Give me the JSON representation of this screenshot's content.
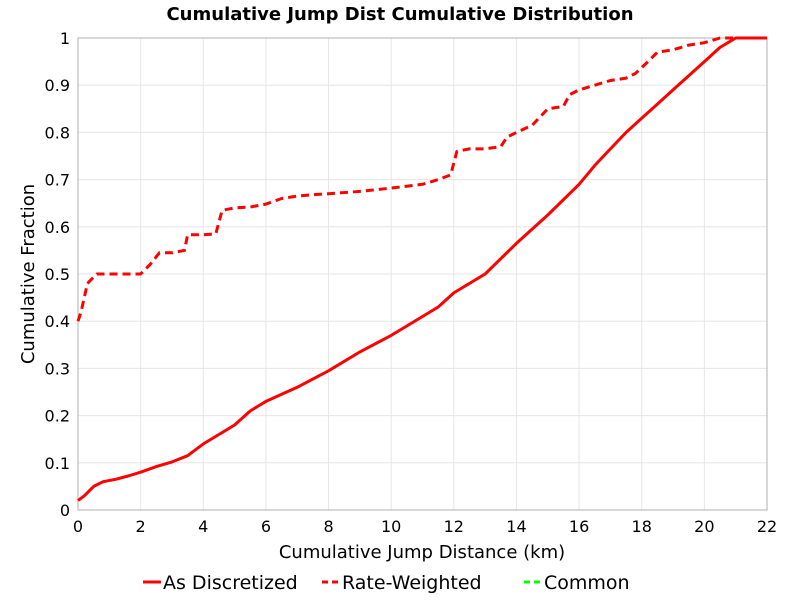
{
  "chart_data": {
    "type": "line",
    "title": "Cumulative Jump Dist Cumulative Distribution",
    "xlabel": "Cumulative Jump Distance (km)",
    "ylabel": "Cumulative Fraction",
    "xlim": [
      0,
      22
    ],
    "ylim": [
      0,
      1
    ],
    "xticks": [
      "0",
      "2",
      "4",
      "6",
      "8",
      "10",
      "12",
      "14",
      "16",
      "18",
      "20",
      "22"
    ],
    "yticks": [
      "0",
      "0.1",
      "0.2",
      "0.3",
      "0.4",
      "0.5",
      "0.6",
      "0.7",
      "0.8",
      "0.9",
      "1"
    ],
    "grid": true,
    "legend_position": "bottom",
    "series": [
      {
        "name": "As Discretized",
        "color": "#ff0000",
        "style": "solid",
        "points": [
          [
            0,
            0.02
          ],
          [
            0.2,
            0.03
          ],
          [
            0.5,
            0.05
          ],
          [
            0.8,
            0.06
          ],
          [
            1.2,
            0.065
          ],
          [
            1.6,
            0.072
          ],
          [
            2.0,
            0.08
          ],
          [
            2.5,
            0.092
          ],
          [
            3.0,
            0.102
          ],
          [
            3.5,
            0.115
          ],
          [
            4.0,
            0.14
          ],
          [
            4.5,
            0.16
          ],
          [
            5.0,
            0.18
          ],
          [
            5.5,
            0.21
          ],
          [
            6.0,
            0.23
          ],
          [
            7.0,
            0.26
          ],
          [
            8.0,
            0.295
          ],
          [
            9.0,
            0.335
          ],
          [
            10.0,
            0.37
          ],
          [
            11.0,
            0.41
          ],
          [
            11.5,
            0.43
          ],
          [
            12.0,
            0.46
          ],
          [
            13.0,
            0.5
          ],
          [
            14.0,
            0.565
          ],
          [
            15.0,
            0.625
          ],
          [
            16.0,
            0.69
          ],
          [
            16.5,
            0.73
          ],
          [
            17.0,
            0.765
          ],
          [
            17.5,
            0.8
          ],
          [
            18.0,
            0.83
          ],
          [
            18.5,
            0.86
          ],
          [
            19.0,
            0.89
          ],
          [
            19.5,
            0.92
          ],
          [
            20.0,
            0.95
          ],
          [
            20.5,
            0.98
          ],
          [
            21.0,
            1.0
          ],
          [
            22.0,
            1.0
          ]
        ]
      },
      {
        "name": "Rate-Weighted",
        "color": "#ff0000",
        "style": "dashed",
        "points": [
          [
            0,
            0.4
          ],
          [
            0.1,
            0.42
          ],
          [
            0.3,
            0.48
          ],
          [
            0.6,
            0.5
          ],
          [
            1.0,
            0.5
          ],
          [
            1.5,
            0.5
          ],
          [
            2.0,
            0.5
          ],
          [
            2.3,
            0.52
          ],
          [
            2.6,
            0.545
          ],
          [
            3.0,
            0.545
          ],
          [
            3.4,
            0.55
          ],
          [
            3.5,
            0.583
          ],
          [
            4.0,
            0.583
          ],
          [
            4.4,
            0.585
          ],
          [
            4.6,
            0.635
          ],
          [
            5.0,
            0.64
          ],
          [
            5.5,
            0.642
          ],
          [
            6.0,
            0.648
          ],
          [
            6.5,
            0.66
          ],
          [
            7.0,
            0.665
          ],
          [
            7.5,
            0.668
          ],
          [
            8.0,
            0.67
          ],
          [
            9.0,
            0.675
          ],
          [
            10.0,
            0.682
          ],
          [
            11.0,
            0.69
          ],
          [
            11.5,
            0.7
          ],
          [
            11.9,
            0.71
          ],
          [
            12.1,
            0.76
          ],
          [
            12.5,
            0.765
          ],
          [
            13.0,
            0.765
          ],
          [
            13.5,
            0.77
          ],
          [
            13.7,
            0.79
          ],
          [
            14.0,
            0.8
          ],
          [
            14.5,
            0.815
          ],
          [
            15.0,
            0.85
          ],
          [
            15.5,
            0.855
          ],
          [
            15.7,
            0.88
          ],
          [
            16.0,
            0.89
          ],
          [
            16.5,
            0.9
          ],
          [
            17.0,
            0.91
          ],
          [
            17.5,
            0.915
          ],
          [
            17.8,
            0.925
          ],
          [
            18.2,
            0.95
          ],
          [
            18.5,
            0.97
          ],
          [
            19.0,
            0.975
          ],
          [
            19.5,
            0.985
          ],
          [
            20.0,
            0.99
          ],
          [
            20.5,
            1.0
          ],
          [
            22.0,
            1.0
          ]
        ]
      },
      {
        "name": "Common",
        "color": "#00ff00",
        "style": "dashed",
        "points": []
      }
    ]
  }
}
